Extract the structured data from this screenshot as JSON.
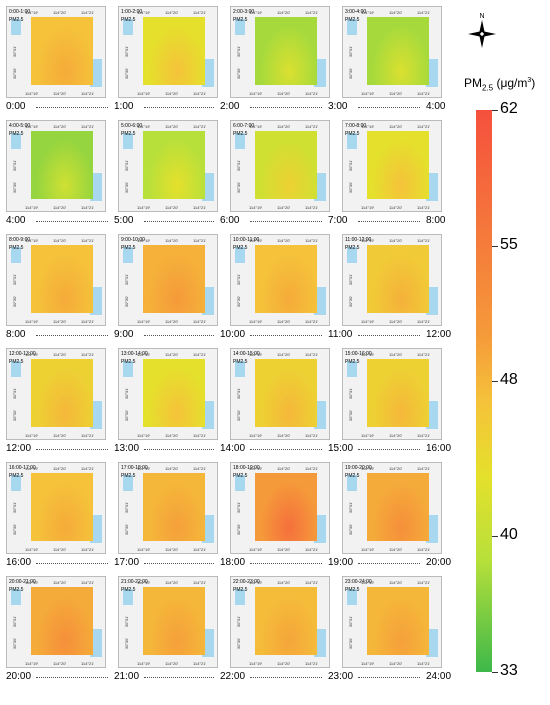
{
  "legend": {
    "title": "PM",
    "subscript": "2.5",
    "unit_prefix": "(μg/m",
    "unit_sup": "3",
    "unit_suffix": ")",
    "ticks": [
      "62",
      "55",
      "48",
      "40",
      "33"
    ],
    "tick_values": [
      62,
      55,
      48,
      40,
      33
    ],
    "range": [
      33,
      62
    ]
  },
  "compass_label": "N",
  "pm_label": "PM2.5",
  "lon_ticks": [
    "114°19'",
    "114°20'",
    "114°21'"
  ],
  "lat_ticks": [
    "30°31'",
    "30°30'"
  ],
  "tiles": [
    {
      "range": "0:00-1:00",
      "level": 48
    },
    {
      "range": "1:00-2:00",
      "level": 44
    },
    {
      "range": "2:00-3:00",
      "level": 39
    },
    {
      "range": "3:00-4:00",
      "level": 39
    },
    {
      "range": "4:00-5:00",
      "level": 38
    },
    {
      "range": "5:00-6:00",
      "level": 40
    },
    {
      "range": "6:00-7:00",
      "level": 42
    },
    {
      "range": "7:00-8:00",
      "level": 44
    },
    {
      "range": "8:00-9:00",
      "level": 48
    },
    {
      "range": "9:00-10:00",
      "level": 51
    },
    {
      "range": "10:00-11:00",
      "level": 48
    },
    {
      "range": "11:00-12:00",
      "level": 47
    },
    {
      "range": "12:00-13:00",
      "level": 46
    },
    {
      "range": "13:00-14:00",
      "level": 44
    },
    {
      "range": "14:00-15:00",
      "level": 46
    },
    {
      "range": "15:00-16:00",
      "level": 46
    },
    {
      "range": "16:00-17:00",
      "level": 48
    },
    {
      "range": "17:00-18:00",
      "level": 50
    },
    {
      "range": "18:00-19:00",
      "level": 55
    },
    {
      "range": "19:00-20:00",
      "level": 52
    },
    {
      "range": "20:00-21:00",
      "level": 52
    },
    {
      "range": "21:00-22:00",
      "level": 50
    },
    {
      "range": "22:00-23:00",
      "level": 49
    },
    {
      "range": "23:00-24:00",
      "level": 50
    }
  ],
  "timelines": [
    [
      "0:00",
      "1:00",
      "2:00",
      "3:00",
      "4:00"
    ],
    [
      "4:00",
      "5:00",
      "6:00",
      "7:00",
      "8:00"
    ],
    [
      "8:00",
      "9:00",
      "10:00",
      "11:00",
      "12:00"
    ],
    [
      "12:00",
      "13:00",
      "14:00",
      "15:00",
      "16:00"
    ],
    [
      "16:00",
      "17:00",
      "18:00",
      "19:00",
      "20:00"
    ],
    [
      "20:00",
      "21:00",
      "22:00",
      "23:00",
      "24:00"
    ]
  ]
}
